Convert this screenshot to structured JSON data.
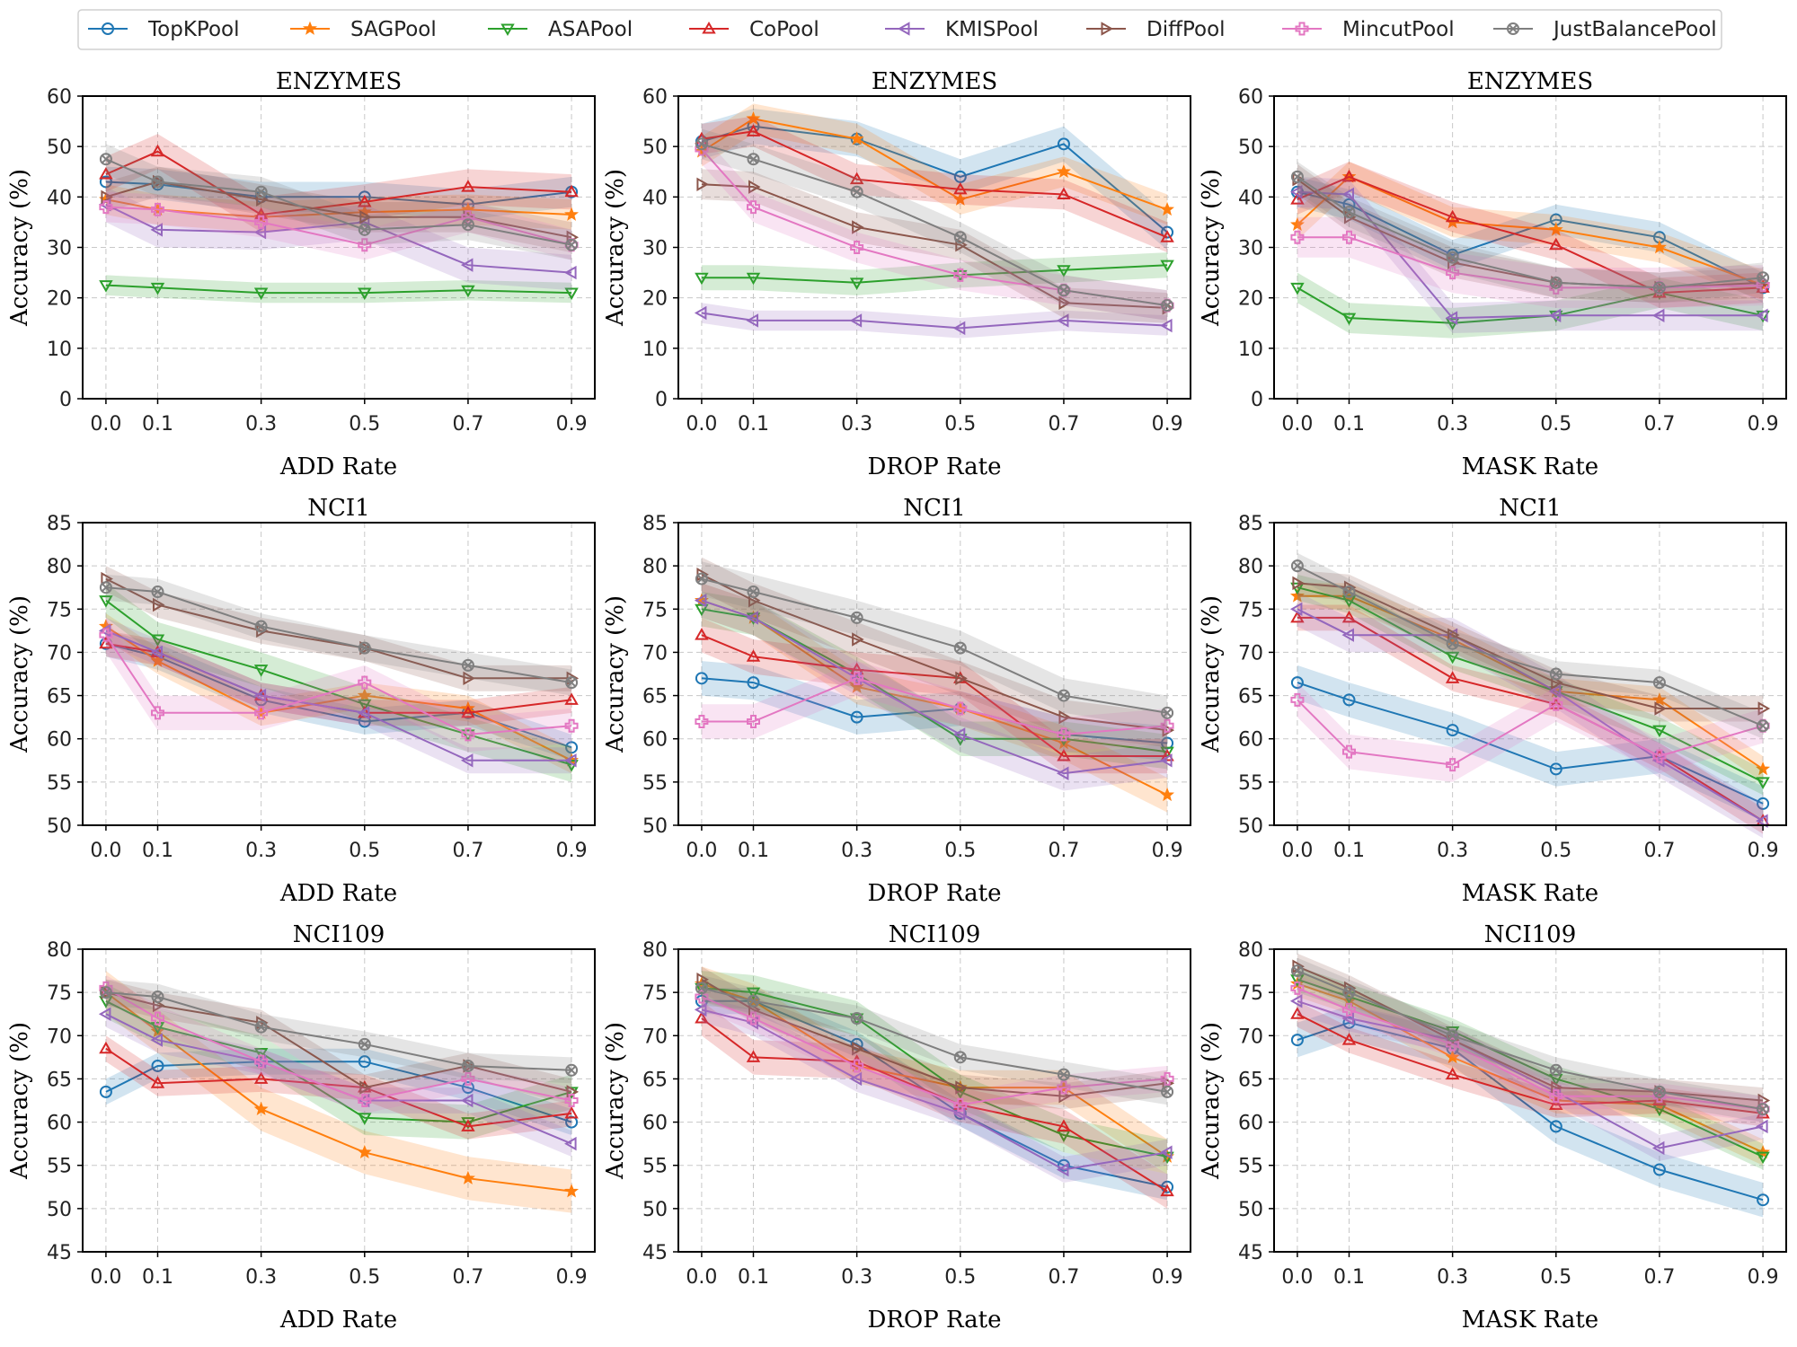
{
  "figure": {
    "ylabel": "Accuracy (%)",
    "x_ticks": [
      0.0,
      0.1,
      0.3,
      0.5,
      0.7,
      0.9
    ],
    "x_tick_labels": [
      "0.0",
      "0.1",
      "0.3",
      "0.5",
      "0.7",
      "0.9"
    ]
  },
  "legend": {
    "position": "top-center",
    "entries": [
      {
        "name": "TopKPool",
        "color": "#1f77b4",
        "marker": "circle"
      },
      {
        "name": "SAGPool",
        "color": "#ff7f0e",
        "marker": "star"
      },
      {
        "name": "ASAPool",
        "color": "#2ca02c",
        "marker": "triangle-down"
      },
      {
        "name": "CoPool",
        "color": "#d62728",
        "marker": "triangle-up"
      },
      {
        "name": "KMISPool",
        "color": "#9467bd",
        "marker": "triangle-left"
      },
      {
        "name": "DiffPool",
        "color": "#8c564b",
        "marker": "triangle-right"
      },
      {
        "name": "MincutPool",
        "color": "#e377c2",
        "marker": "plus"
      },
      {
        "name": "JustBalancePool",
        "color": "#7f7f7f",
        "marker": "xcircle"
      }
    ]
  },
  "chart_data": [
    {
      "type": "line",
      "title": "ENZYMES",
      "xlabel": "ADD Rate",
      "ylabel": "Accuracy (%)",
      "ylim": [
        0,
        60
      ],
      "yticks": [
        0,
        10,
        20,
        30,
        40,
        50,
        60
      ],
      "series": [
        {
          "name": "TopKPool",
          "values": [
            43.0,
            42.5,
            40.0,
            40.0,
            38.5,
            41.0
          ],
          "band": 3.0
        },
        {
          "name": "SAGPool",
          "values": [
            39.5,
            37.5,
            36.0,
            37.0,
            37.5,
            36.5
          ],
          "band": 3.0
        },
        {
          "name": "ASAPool",
          "values": [
            22.5,
            22.0,
            21.0,
            21.0,
            21.5,
            21.0
          ],
          "band": 2.0
        },
        {
          "name": "CoPool",
          "values": [
            44.5,
            49.0,
            36.5,
            39.0,
            42.0,
            41.0
          ],
          "band": 3.5
        },
        {
          "name": "KMISPool",
          "values": [
            38.5,
            33.5,
            33.0,
            35.0,
            26.5,
            25.0
          ],
          "band": 3.5
        },
        {
          "name": "DiffPool",
          "values": [
            40.0,
            43.0,
            39.5,
            36.0,
            36.0,
            32.0
          ],
          "band": 3.0
        },
        {
          "name": "MincutPool",
          "values": [
            38.0,
            37.5,
            35.0,
            30.5,
            36.0,
            30.5
          ],
          "band": 3.0
        },
        {
          "name": "JustBalancePool",
          "values": [
            47.5,
            43.0,
            41.0,
            33.5,
            34.5,
            30.5
          ],
          "band": 3.0
        }
      ]
    },
    {
      "type": "line",
      "title": "ENZYMES",
      "xlabel": "DROP Rate",
      "ylabel": "Accuracy (%)",
      "ylim": [
        0,
        60
      ],
      "yticks": [
        0,
        10,
        20,
        30,
        40,
        50,
        60
      ],
      "series": [
        {
          "name": "TopKPool",
          "values": [
            51.0,
            54.0,
            51.5,
            44.0,
            50.5,
            33.0
          ],
          "band": 3.5
        },
        {
          "name": "SAGPool",
          "values": [
            49.0,
            55.5,
            51.5,
            39.5,
            45.0,
            37.5
          ],
          "band": 3.0
        },
        {
          "name": "ASAPool",
          "values": [
            24.0,
            24.0,
            23.0,
            24.5,
            25.5,
            26.5
          ],
          "band": 2.5
        },
        {
          "name": "CoPool",
          "values": [
            51.5,
            53.0,
            43.5,
            41.5,
            40.5,
            32.0
          ],
          "band": 3.0
        },
        {
          "name": "KMISPool",
          "values": [
            17.0,
            15.5,
            15.5,
            14.0,
            15.5,
            14.5
          ],
          "band": 2.0
        },
        {
          "name": "DiffPool",
          "values": [
            42.5,
            42.0,
            34.0,
            30.5,
            19.0,
            18.0
          ],
          "band": 3.0
        },
        {
          "name": "MincutPool",
          "values": [
            49.5,
            38.0,
            30.0,
            24.5,
            21.5,
            18.5
          ],
          "band": 3.0
        },
        {
          "name": "JustBalancePool",
          "values": [
            50.5,
            47.5,
            41.0,
            32.0,
            21.5,
            18.5
          ],
          "band": 3.0
        }
      ]
    },
    {
      "type": "line",
      "title": "ENZYMES",
      "xlabel": "MASK Rate",
      "ylabel": "Accuracy (%)",
      "ylim": [
        0,
        60
      ],
      "yticks": [
        0,
        10,
        20,
        30,
        40,
        50,
        60
      ],
      "series": [
        {
          "name": "TopKPool",
          "values": [
            41.0,
            38.5,
            28.5,
            35.5,
            32.0,
            22.0
          ],
          "band": 3.0
        },
        {
          "name": "SAGPool",
          "values": [
            34.5,
            44.0,
            35.0,
            33.5,
            30.0,
            22.5
          ],
          "band": 3.0
        },
        {
          "name": "ASAPool",
          "values": [
            22.0,
            16.0,
            15.0,
            16.5,
            21.0,
            16.5
          ],
          "band": 3.0
        },
        {
          "name": "CoPool",
          "values": [
            39.5,
            44.0,
            36.0,
            30.5,
            21.0,
            22.0
          ],
          "band": 3.0
        },
        {
          "name": "KMISPool",
          "values": [
            41.0,
            40.5,
            16.0,
            16.5,
            16.5,
            16.5
          ],
          "band": 3.0
        },
        {
          "name": "DiffPool",
          "values": [
            43.5,
            36.0,
            27.0,
            23.0,
            22.0,
            23.0
          ],
          "band": 3.0
        },
        {
          "name": "MincutPool",
          "values": [
            32.0,
            32.0,
            25.0,
            22.0,
            22.0,
            22.5
          ],
          "band": 4.0
        },
        {
          "name": "JustBalancePool",
          "values": [
            44.0,
            37.0,
            28.0,
            23.0,
            22.0,
            24.0
          ],
          "band": 3.0
        }
      ]
    },
    {
      "type": "line",
      "title": "NCI1",
      "xlabel": "ADD Rate",
      "ylabel": "Accuracy (%)",
      "ylim": [
        50,
        85
      ],
      "yticks": [
        50,
        55,
        60,
        65,
        70,
        75,
        80,
        85
      ],
      "series": [
        {
          "name": "TopKPool",
          "values": [
            71.0,
            69.5,
            64.5,
            62.0,
            63.0,
            59.0
          ],
          "band": 1.5
        },
        {
          "name": "SAGPool",
          "values": [
            73.0,
            69.0,
            63.0,
            65.0,
            63.5,
            57.5
          ],
          "band": 1.5
        },
        {
          "name": "ASAPool",
          "values": [
            76.0,
            71.5,
            68.0,
            64.0,
            60.5,
            57.0
          ],
          "band": 2.0
        },
        {
          "name": "CoPool",
          "values": [
            71.0,
            70.0,
            65.0,
            63.0,
            63.0,
            64.5
          ],
          "band": 1.5
        },
        {
          "name": "KMISPool",
          "values": [
            72.5,
            70.0,
            65.0,
            63.0,
            57.5,
            57.5
          ],
          "band": 1.5
        },
        {
          "name": "DiffPool",
          "values": [
            78.5,
            75.5,
            72.5,
            70.5,
            67.0,
            67.0
          ],
          "band": 1.5
        },
        {
          "name": "MincutPool",
          "values": [
            72.0,
            63.0,
            63.0,
            66.5,
            60.5,
            61.5
          ],
          "band": 2.0
        },
        {
          "name": "JustBalancePool",
          "values": [
            77.5,
            77.0,
            73.0,
            70.5,
            68.5,
            66.5
          ],
          "band": 1.5
        }
      ]
    },
    {
      "type": "line",
      "title": "NCI1",
      "xlabel": "DROP Rate",
      "ylabel": "Accuracy (%)",
      "ylim": [
        50,
        85
      ],
      "yticks": [
        50,
        55,
        60,
        65,
        70,
        75,
        80,
        85
      ],
      "series": [
        {
          "name": "TopKPool",
          "values": [
            67.0,
            66.5,
            62.5,
            63.5,
            60.5,
            59.5
          ],
          "band": 2.0
        },
        {
          "name": "SAGPool",
          "values": [
            76.0,
            74.0,
            66.0,
            63.5,
            59.5,
            53.5
          ],
          "band": 2.0
        },
        {
          "name": "ASAPool",
          "values": [
            75.0,
            74.0,
            67.5,
            60.0,
            60.0,
            58.5
          ],
          "band": 2.0
        },
        {
          "name": "CoPool",
          "values": [
            72.0,
            69.5,
            68.0,
            67.0,
            58.0,
            58.0
          ],
          "band": 2.0
        },
        {
          "name": "KMISPool",
          "values": [
            76.0,
            74.0,
            67.0,
            60.5,
            56.0,
            57.5
          ],
          "band": 2.0
        },
        {
          "name": "DiffPool",
          "values": [
            79.0,
            76.0,
            71.5,
            67.0,
            62.5,
            61.0
          ],
          "band": 2.0
        },
        {
          "name": "MincutPool",
          "values": [
            62.0,
            62.0,
            67.0,
            63.5,
            60.5,
            61.5
          ],
          "band": 2.0
        },
        {
          "name": "JustBalancePool",
          "values": [
            78.5,
            77.0,
            74.0,
            70.5,
            65.0,
            63.0
          ],
          "band": 2.0
        }
      ]
    },
    {
      "type": "line",
      "title": "NCI1",
      "xlabel": "MASK Rate",
      "ylabel": "Accuracy (%)",
      "ylim": [
        50,
        85
      ],
      "yticks": [
        50,
        55,
        60,
        65,
        70,
        75,
        80,
        85
      ],
      "series": [
        {
          "name": "TopKPool",
          "values": [
            66.5,
            64.5,
            61.0,
            56.5,
            58.0,
            52.5
          ],
          "band": 2.0
        },
        {
          "name": "SAGPool",
          "values": [
            76.5,
            76.5,
            71.5,
            65.5,
            64.5,
            56.5
          ],
          "band": 1.5
        },
        {
          "name": "ASAPool",
          "values": [
            77.5,
            76.0,
            69.5,
            65.5,
            61.0,
            55.0
          ],
          "band": 1.5
        },
        {
          "name": "CoPool",
          "values": [
            74.0,
            74.0,
            67.0,
            64.0,
            58.0,
            50.5
          ],
          "band": 1.5
        },
        {
          "name": "KMISPool",
          "values": [
            75.0,
            72.0,
            72.0,
            65.5,
            57.5,
            50.5
          ],
          "band": 2.0
        },
        {
          "name": "DiffPool",
          "values": [
            78.0,
            77.5,
            72.0,
            66.5,
            63.5,
            63.5
          ],
          "band": 1.5
        },
        {
          "name": "MincutPool",
          "values": [
            64.5,
            58.5,
            57.0,
            64.0,
            58.0,
            61.5
          ],
          "band": 2.0
        },
        {
          "name": "JustBalancePool",
          "values": [
            80.0,
            77.0,
            71.0,
            67.5,
            66.5,
            61.5
          ],
          "band": 1.5
        }
      ]
    },
    {
      "type": "line",
      "title": "NCI109",
      "xlabel": "ADD Rate",
      "ylabel": "Accuracy (%)",
      "ylim": [
        45,
        80
      ],
      "yticks": [
        45,
        50,
        55,
        60,
        65,
        70,
        75,
        80
      ],
      "series": [
        {
          "name": "TopKPool",
          "values": [
            63.5,
            66.5,
            67.0,
            67.0,
            64.0,
            60.0
          ],
          "band": 1.5
        },
        {
          "name": "SAGPool",
          "values": [
            75.0,
            70.5,
            61.5,
            56.5,
            53.5,
            52.0
          ],
          "band": 2.5
        },
        {
          "name": "ASAPool",
          "values": [
            74.0,
            71.0,
            68.0,
            60.5,
            60.0,
            63.5
          ],
          "band": 2.0
        },
        {
          "name": "CoPool",
          "values": [
            68.5,
            64.5,
            65.0,
            64.0,
            59.5,
            61.0
          ],
          "band": 1.5
        },
        {
          "name": "KMISPool",
          "values": [
            72.5,
            69.5,
            67.0,
            62.5,
            62.5,
            57.5
          ],
          "band": 1.5
        },
        {
          "name": "DiffPool",
          "values": [
            75.0,
            73.5,
            71.5,
            64.0,
            66.5,
            63.5
          ],
          "band": 1.5
        },
        {
          "name": "MincutPool",
          "values": [
            75.5,
            72.0,
            67.0,
            62.5,
            65.0,
            62.5
          ],
          "band": 1.5
        },
        {
          "name": "JustBalancePool",
          "values": [
            75.0,
            74.5,
            71.0,
            69.0,
            66.5,
            66.0
          ],
          "band": 1.5
        }
      ]
    },
    {
      "type": "line",
      "title": "NCI109",
      "xlabel": "DROP Rate",
      "ylabel": "Accuracy (%)",
      "ylim": [
        45,
        80
      ],
      "yticks": [
        45,
        50,
        55,
        60,
        65,
        70,
        75,
        80
      ],
      "series": [
        {
          "name": "TopKPool",
          "values": [
            74.0,
            74.0,
            69.0,
            61.0,
            55.0,
            52.5
          ],
          "band": 1.5
        },
        {
          "name": "SAGPool",
          "values": [
            76.0,
            74.0,
            66.5,
            64.0,
            64.0,
            56.0
          ],
          "band": 2.0
        },
        {
          "name": "ASAPool",
          "values": [
            75.5,
            75.0,
            72.0,
            63.5,
            58.5,
            56.0
          ],
          "band": 2.0
        },
        {
          "name": "CoPool",
          "values": [
            72.0,
            67.5,
            67.0,
            62.0,
            59.5,
            52.0
          ],
          "band": 2.0
        },
        {
          "name": "KMISPool",
          "values": [
            73.0,
            71.5,
            65.0,
            61.0,
            54.5,
            56.5
          ],
          "band": 1.5
        },
        {
          "name": "DiffPool",
          "values": [
            76.5,
            73.0,
            68.5,
            64.0,
            63.0,
            64.5
          ],
          "band": 1.5
        },
        {
          "name": "MincutPool",
          "values": [
            74.5,
            72.0,
            66.5,
            62.0,
            64.0,
            65.0
          ],
          "band": 1.5
        },
        {
          "name": "JustBalancePool",
          "values": [
            75.5,
            74.0,
            72.0,
            67.5,
            65.5,
            63.5
          ],
          "band": 1.5
        }
      ]
    },
    {
      "type": "line",
      "title": "NCI109",
      "xlabel": "MASK Rate",
      "ylabel": "Accuracy (%)",
      "ylim": [
        45,
        80
      ],
      "yticks": [
        45,
        50,
        55,
        60,
        65,
        70,
        75,
        80
      ],
      "series": [
        {
          "name": "TopKPool",
          "values": [
            69.5,
            71.5,
            68.5,
            59.5,
            54.5,
            51.0
          ],
          "band": 2.0
        },
        {
          "name": "SAGPool",
          "values": [
            76.0,
            74.0,
            67.5,
            62.5,
            62.0,
            56.5
          ],
          "band": 1.5
        },
        {
          "name": "ASAPool",
          "values": [
            76.5,
            74.5,
            70.5,
            65.0,
            61.5,
            56.0
          ],
          "band": 1.5
        },
        {
          "name": "CoPool",
          "values": [
            72.5,
            69.5,
            65.5,
            62.0,
            62.5,
            61.0
          ],
          "band": 1.5
        },
        {
          "name": "KMISPool",
          "values": [
            74.0,
            72.0,
            69.5,
            63.5,
            57.0,
            59.5
          ],
          "band": 1.5
        },
        {
          "name": "DiffPool",
          "values": [
            78.0,
            75.5,
            69.5,
            64.0,
            63.5,
            62.5
          ],
          "band": 1.5
        },
        {
          "name": "MincutPool",
          "values": [
            75.5,
            73.0,
            69.0,
            63.0,
            63.0,
            61.5
          ],
          "band": 1.5
        },
        {
          "name": "JustBalancePool",
          "values": [
            77.5,
            75.0,
            70.0,
            66.0,
            63.5,
            61.5
          ],
          "band": 1.5
        }
      ]
    }
  ]
}
